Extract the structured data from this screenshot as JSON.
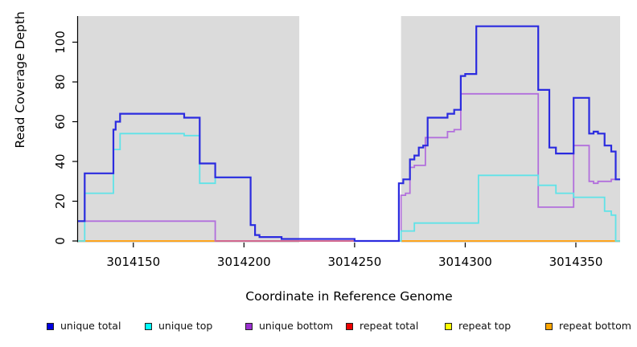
{
  "chart_data": {
    "type": "line",
    "subtype": "step-post",
    "title": "",
    "xlabel": "Coordinate in Reference Genome",
    "ylabel": "Read Coverage Depth",
    "xlim": [
      3014125,
      3014370
    ],
    "ylim": [
      0,
      113
    ],
    "x_ticks": [
      3014150,
      3014200,
      3014250,
      3014300,
      3014350
    ],
    "y_ticks": [
      0,
      20,
      40,
      60,
      80,
      100
    ],
    "grid": false,
    "plot_bg_color": "#DBDBDB",
    "no_data_region": {
      "from": 3014225,
      "to": 3014271,
      "color": "#FFFFFF"
    },
    "masked_overlap": {
      "from": 3014187,
      "to": 3014271,
      "value": 0,
      "color": "#D2688F"
    },
    "legend_position": "bottom",
    "series": [
      {
        "name": "repeat top",
        "legend_color": "#FFFF00",
        "line_color": "#F2F22A",
        "points": [
          [
            3014125,
            0
          ]
        ]
      },
      {
        "name": "repeat total",
        "legend_color": "#EE0000",
        "line_color": "#DC3B3B",
        "points": [
          [
            3014125,
            0
          ]
        ]
      },
      {
        "name": "repeat bottom",
        "legend_color": "#FFA500",
        "line_color": "#FFA51E",
        "points": [
          [
            3014125,
            0
          ]
        ]
      },
      {
        "name": "unique bottom",
        "legend_color": "#9B30D0",
        "line_color": "#B26FDC",
        "points": [
          [
            3014125,
            10
          ],
          [
            3014187,
            0
          ],
          [
            3014271,
            23
          ],
          [
            3014273,
            24
          ],
          [
            3014275,
            37
          ],
          [
            3014277,
            38
          ],
          [
            3014282,
            52
          ],
          [
            3014292,
            55
          ],
          [
            3014295,
            56
          ],
          [
            3014298,
            74
          ],
          [
            3014333,
            17
          ],
          [
            3014349,
            48
          ],
          [
            3014356,
            30
          ],
          [
            3014358,
            29
          ],
          [
            3014360,
            30
          ],
          [
            3014366,
            31
          ]
        ]
      },
      {
        "name": "unique top",
        "legend_color": "#00FFFF",
        "line_color": "#5FE3E8",
        "points": [
          [
            3014125,
            0
          ],
          [
            3014128,
            24
          ],
          [
            3014141,
            46
          ],
          [
            3014144,
            54
          ],
          [
            3014173,
            53
          ],
          [
            3014180,
            29
          ],
          [
            3014187,
            32
          ],
          [
            3014203,
            8
          ],
          [
            3014205,
            3
          ],
          [
            3014207,
            2
          ],
          [
            3014217,
            1
          ],
          [
            3014250,
            0
          ],
          [
            3014271,
            5
          ],
          [
            3014277,
            9
          ],
          [
            3014306,
            33
          ],
          [
            3014333,
            28
          ],
          [
            3014341,
            24
          ],
          [
            3014349,
            22
          ],
          [
            3014363,
            15
          ],
          [
            3014366,
            13
          ],
          [
            3014368,
            0
          ]
        ]
      },
      {
        "name": "unique total",
        "legend_color": "#0000E0",
        "line_color": "#2B2BDF",
        "points": [
          [
            3014125,
            10
          ],
          [
            3014128,
            34
          ],
          [
            3014141,
            56
          ],
          [
            3014142,
            60
          ],
          [
            3014144,
            64
          ],
          [
            3014173,
            62
          ],
          [
            3014180,
            39
          ],
          [
            3014187,
            32
          ],
          [
            3014203,
            8
          ],
          [
            3014205,
            3
          ],
          [
            3014207,
            2
          ],
          [
            3014217,
            1
          ],
          [
            3014250,
            0
          ],
          [
            3014270,
            29
          ],
          [
            3014272,
            31
          ],
          [
            3014275,
            41
          ],
          [
            3014277,
            43
          ],
          [
            3014279,
            47
          ],
          [
            3014281,
            48
          ],
          [
            3014283,
            62
          ],
          [
            3014292,
            64
          ],
          [
            3014295,
            66
          ],
          [
            3014298,
            83
          ],
          [
            3014300,
            84
          ],
          [
            3014305,
            108
          ],
          [
            3014333,
            76
          ],
          [
            3014338,
            47
          ],
          [
            3014341,
            44
          ],
          [
            3014349,
            72
          ],
          [
            3014356,
            54
          ],
          [
            3014358,
            55
          ],
          [
            3014360,
            54
          ],
          [
            3014363,
            48
          ],
          [
            3014366,
            45
          ],
          [
            3014368,
            31
          ]
        ]
      }
    ],
    "legend_order": [
      "unique total",
      "unique top",
      "unique bottom",
      "repeat total",
      "repeat top",
      "repeat bottom"
    ]
  },
  "legend": {
    "items": [
      {
        "label": "unique total"
      },
      {
        "label": "unique top"
      },
      {
        "label": "unique bottom"
      },
      {
        "label": "repeat total"
      },
      {
        "label": "repeat top"
      },
      {
        "label": "repeat bottom"
      }
    ]
  }
}
